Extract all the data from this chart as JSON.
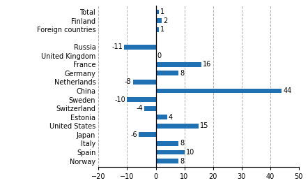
{
  "categories": [
    "Total",
    "Finland",
    "Foreign countries",
    "",
    "Russia",
    "United Kingdom",
    "France",
    "Germany",
    "Netherlands",
    "China",
    "Sweden",
    "Switzerland",
    "Estonia",
    "United States",
    "Japan",
    "Italy",
    "Spain",
    "Norway"
  ],
  "values": [
    1,
    2,
    1,
    null,
    -11,
    0,
    16,
    8,
    -8,
    44,
    -10,
    -4,
    4,
    15,
    -6,
    8,
    10,
    8
  ],
  "bar_color": "#2070b4",
  "xlim": [
    -20,
    50
  ],
  "xticks": [
    -20,
    -10,
    0,
    10,
    20,
    30,
    40,
    50
  ],
  "bar_height": 0.55,
  "grid_color": "#b0b0b0",
  "label_fontsize": 7,
  "value_fontsize": 7,
  "tick_fontsize": 7
}
